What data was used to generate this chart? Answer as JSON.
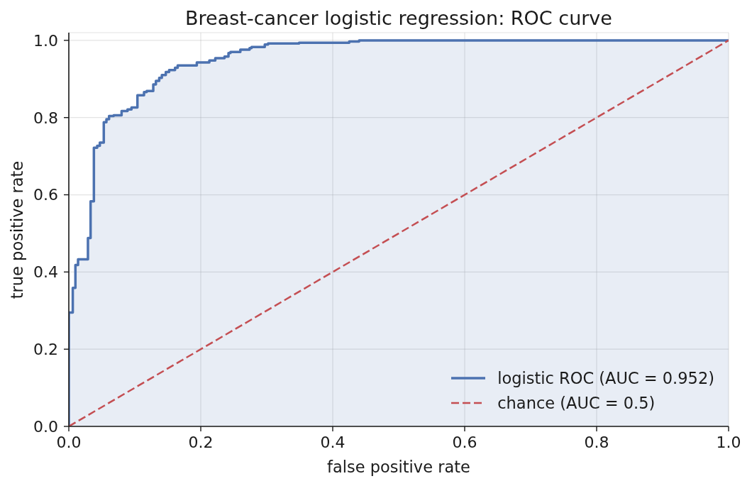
{
  "chart_data": {
    "type": "step",
    "title": "Breast-cancer logistic regression: ROC curve",
    "xlabel": "false positive rate",
    "ylabel": "true positive rate",
    "xlim": [
      0,
      1
    ],
    "ylim": [
      0,
      1.02
    ],
    "xticks": [
      {
        "value": 0,
        "label": "0.0"
      },
      0.2,
      0.4,
      0.6,
      0.8,
      {
        "value": 1,
        "label": "1.0"
      }
    ],
    "yticks": [
      {
        "value": 0,
        "label": "0.0"
      },
      0.2,
      0.4,
      0.6,
      0.8,
      {
        "value": 1,
        "label": "1.0"
      }
    ],
    "grid": true,
    "legend": "bottom right",
    "series": [
      {
        "name": "logistic ROC (AUC = 0.952)",
        "color": "#4c72b0",
        "line_style": "solid",
        "x": [
          0,
          0,
          0.006,
          0.01,
          0.014,
          0.029,
          0.033,
          0.038,
          0.043,
          0.047,
          0.053,
          0.057,
          0.061,
          0.068,
          0.08,
          0.089,
          0.095,
          0.104,
          0.114,
          0.118,
          0.128,
          0.132,
          0.137,
          0.141,
          0.147,
          0.152,
          0.161,
          0.165,
          0.194,
          0.213,
          0.222,
          0.236,
          0.242,
          0.245,
          0.26,
          0.274,
          0.277,
          0.297,
          0.302,
          0.349,
          0.425,
          0.44,
          1
        ],
        "values": [
          0,
          0.295,
          0.359,
          0.418,
          0.433,
          0.488,
          0.583,
          0.722,
          0.727,
          0.735,
          0.788,
          0.796,
          0.804,
          0.806,
          0.817,
          0.821,
          0.826,
          0.858,
          0.866,
          0.869,
          0.886,
          0.895,
          0.903,
          0.91,
          0.918,
          0.923,
          0.929,
          0.935,
          0.943,
          0.948,
          0.954,
          0.958,
          0.967,
          0.97,
          0.976,
          0.98,
          0.983,
          0.989,
          0.992,
          0.994,
          0.997,
          1,
          1
        ]
      },
      {
        "name": "chance (AUC = 0.5)",
        "type": "line",
        "color": "#c44e52",
        "line_style": "dashed",
        "x": [
          0,
          1
        ],
        "values": [
          0,
          1
        ]
      }
    ]
  }
}
